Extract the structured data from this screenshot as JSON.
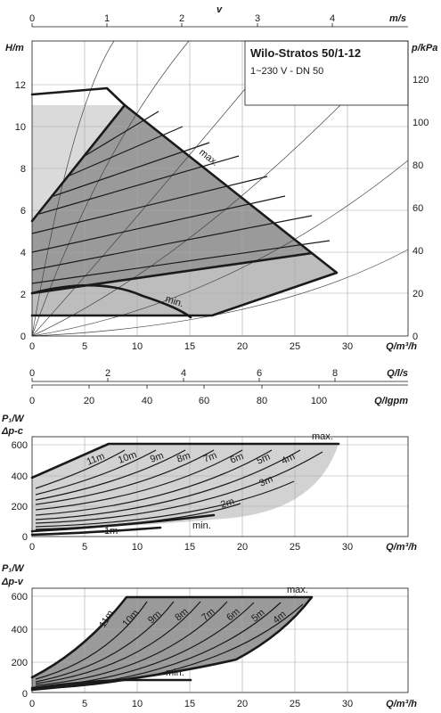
{
  "title": "Wilo-Stratos 50/1-12",
  "subtitle": "1~230 V - DN 50",
  "colors": {
    "light_fill": "#dadada",
    "mid_fill": "#bdbdbd",
    "dark_fill": "#9a9a9a",
    "line": "#1a1a1a",
    "grid": "#a8a8a8"
  },
  "top_axes": {
    "v": {
      "label": "v",
      "unit": "m/s",
      "ticks": [
        "0",
        "1",
        "2",
        "3",
        "4"
      ]
    },
    "l_s": {
      "label": "Q/l/s",
      "ticks": [
        "0",
        "2",
        "4",
        "6",
        "8"
      ]
    },
    "igpm": {
      "label": "Q/Igpm",
      "ticks": [
        "0",
        "20",
        "40",
        "60",
        "80",
        "100"
      ]
    }
  },
  "chart_data": [
    {
      "type": "line",
      "title": "Wilo-Stratos 50/1-12",
      "xlabel": "Q/m³/h",
      "ylabel": "H/m",
      "y2label": "p/kPa",
      "xlim": [
        0,
        35
      ],
      "ylim": [
        0,
        13
      ],
      "x_ticks": [
        "0",
        "5",
        "10",
        "15",
        "20",
        "25",
        "30"
      ],
      "y_ticks": [
        "0",
        "2",
        "4",
        "6",
        "8",
        "10",
        "12"
      ],
      "y2_ticks": [
        "0",
        "20",
        "40",
        "60",
        "80",
        "100",
        "120"
      ],
      "labels": [
        "max.",
        "min."
      ],
      "series": [
        {
          "name": "max.",
          "x": [
            0,
            7.2,
            8.9,
            25.8,
            28.9,
            17.0,
            0
          ],
          "y": [
            11.4,
            11.8,
            10.9,
            4.0,
            2.9,
            1.0,
            1.0
          ]
        },
        {
          "name": "min.",
          "x": [
            0,
            5,
            10,
            13,
            15
          ],
          "y": [
            2.1,
            2.3,
            1.9,
            1.35,
            0.75
          ]
        }
      ]
    },
    {
      "type": "line",
      "title": "",
      "ylabel": "P₁/W",
      "mode_label": "Δp-c",
      "xlabel": "Q/m³/h",
      "xlim": [
        0,
        35
      ],
      "ylim": [
        0,
        650
      ],
      "x_ticks": [
        "0",
        "5",
        "10",
        "15",
        "20",
        "25",
        "30"
      ],
      "y_ticks": [
        "0",
        "200",
        "400",
        "600"
      ],
      "labels": [
        "max.",
        "min.",
        "11m",
        "10m",
        "9m",
        "8m",
        "7m",
        "6m",
        "5m",
        "4m",
        "3m",
        "2m",
        "1m"
      ],
      "series": [
        {
          "name": "max.",
          "x": [
            0,
            7.2,
            29
          ],
          "y": [
            380,
            590,
            590
          ]
        },
        {
          "name": "min.",
          "x": [
            0,
            6,
            12,
            17
          ],
          "y": [
            30,
            45,
            75,
            120
          ]
        }
      ]
    },
    {
      "type": "line",
      "title": "",
      "ylabel": "P₁/W",
      "mode_label": "Δp-v",
      "xlabel": "Q/m³/h",
      "xlim": [
        0,
        35
      ],
      "ylim": [
        0,
        650
      ],
      "x_ticks": [
        "0",
        "5",
        "10",
        "15",
        "20",
        "25",
        "30"
      ],
      "y_ticks": [
        "0",
        "200",
        "400",
        "600"
      ],
      "labels": [
        "max.",
        "min.",
        "11m",
        "10m",
        "9m",
        "8m",
        "7m",
        "6m",
        "5m",
        "4m"
      ],
      "series": [
        {
          "name": "max.",
          "x": [
            8.9,
            26
          ],
          "y": [
            590,
            590
          ]
        },
        {
          "name": "min.",
          "x": [
            0,
            5,
            8,
            15
          ],
          "y": [
            55,
            75,
            95,
            95
          ]
        }
      ]
    }
  ]
}
